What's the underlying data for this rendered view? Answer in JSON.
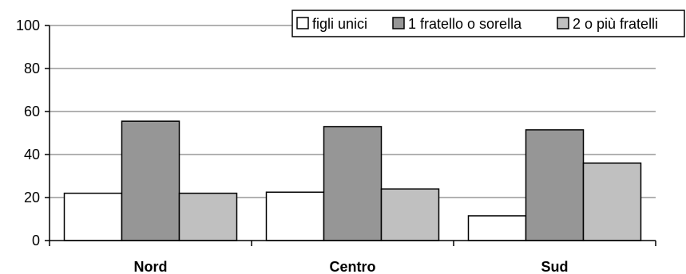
{
  "chart_data": {
    "type": "bar",
    "categories": [
      "Nord",
      "Centro",
      "Sud"
    ],
    "series": [
      {
        "name": "figli unici",
        "values": [
          22,
          22.5,
          11.5
        ],
        "color": "#ffffff"
      },
      {
        "name": "1 fratello o sorella",
        "values": [
          55.5,
          53,
          51.5
        ],
        "color": "#969696"
      },
      {
        "name": "2 o più fratelli",
        "values": [
          22,
          24,
          36
        ],
        "color": "#c0c0c0"
      }
    ],
    "title": "",
    "xlabel": "",
    "ylabel": "",
    "ylim": [
      0,
      100
    ],
    "yticks": [
      0,
      20,
      40,
      60,
      80,
      100
    ],
    "grid": true,
    "legend_position": "top-right",
    "gridline_color": "#999999",
    "bar_border_color": "#000000"
  }
}
